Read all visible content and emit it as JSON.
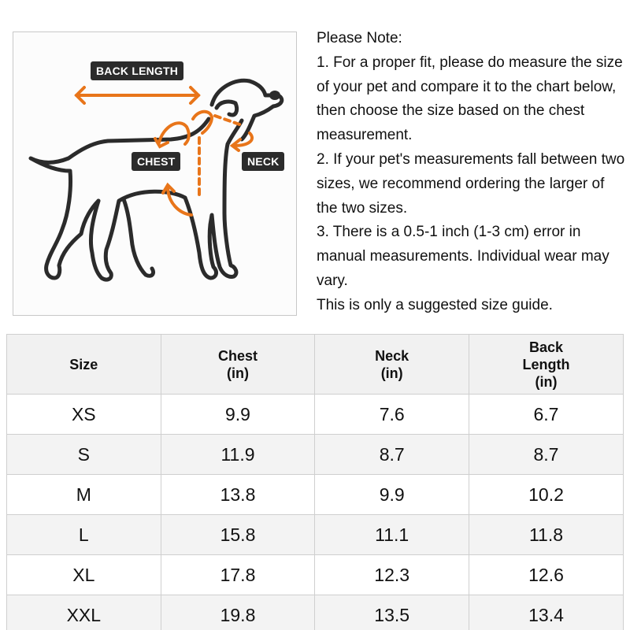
{
  "diagram": {
    "labels": {
      "back_length": "BACK LENGTH",
      "chest": "CHEST",
      "neck": "NECK"
    },
    "colors": {
      "arrow": "#e8751a",
      "outline": "#2b2b2b",
      "tag_bg": "#2b2b2b"
    }
  },
  "note": {
    "lines": [
      "Please Note:",
      "1. For a proper fit, please do measure the size of your pet and compare it to the chart below, then choose the size based on the chest measurement.",
      "2. If your pet's measurements fall between two sizes, we recommend ordering the larger of the two sizes.",
      "3. There is a 0.5-1 inch (1-3 cm) error in manual measurements. Individual wear may vary.",
      "This is only a suggested size guide."
    ]
  },
  "table": {
    "headers": [
      [
        "Size"
      ],
      [
        "Chest",
        "(in)"
      ],
      [
        "Neck",
        "(in)"
      ],
      [
        "Back",
        "Length",
        "(in)"
      ]
    ],
    "rows": [
      [
        "XS",
        "9.9",
        "7.6",
        "6.7"
      ],
      [
        "S",
        "11.9",
        "8.7",
        "8.7"
      ],
      [
        "M",
        "13.8",
        "9.9",
        "10.2"
      ],
      [
        "L",
        "15.8",
        "11.1",
        "11.8"
      ],
      [
        "XL",
        "17.8",
        "12.3",
        "12.6"
      ],
      [
        "XXL",
        "19.8",
        "13.5",
        "13.4"
      ]
    ]
  }
}
